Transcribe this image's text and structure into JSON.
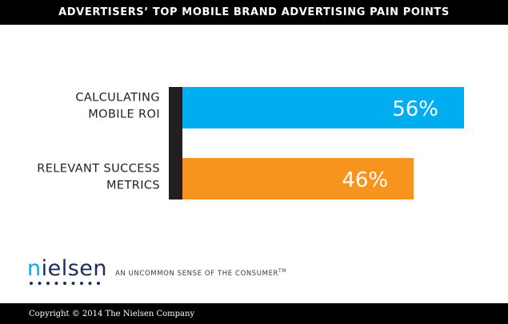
{
  "title": "ADVERTISERS’ TOP MOBILE BRAND ADVERTISING PAIN POINTS",
  "chart_data": {
    "type": "bar",
    "orientation": "horizontal",
    "categories": [
      [
        "CALCULATING",
        "MOBILE ROI"
      ],
      [
        "RELEVANT SUCCESS",
        "METRICS"
      ]
    ],
    "values": [
      56,
      46
    ],
    "data_labels": [
      "56%",
      "46%"
    ],
    "colors": [
      "#00aeef",
      "#f7941d"
    ],
    "axis_color": "#231f20",
    "xlim": [
      0,
      100
    ],
    "grid": false,
    "legend": "none"
  },
  "brand": {
    "logo_prefix": "n",
    "logo_rest": "ielsen",
    "logo_color": "#1e2a5a",
    "logo_accent": "#00aeef",
    "tagline": "AN UNCOMMON SENSE OF THE CONSUMER",
    "tagline_mark": "TM"
  },
  "copyright": "Copyright © 2014 The Nielsen Company"
}
